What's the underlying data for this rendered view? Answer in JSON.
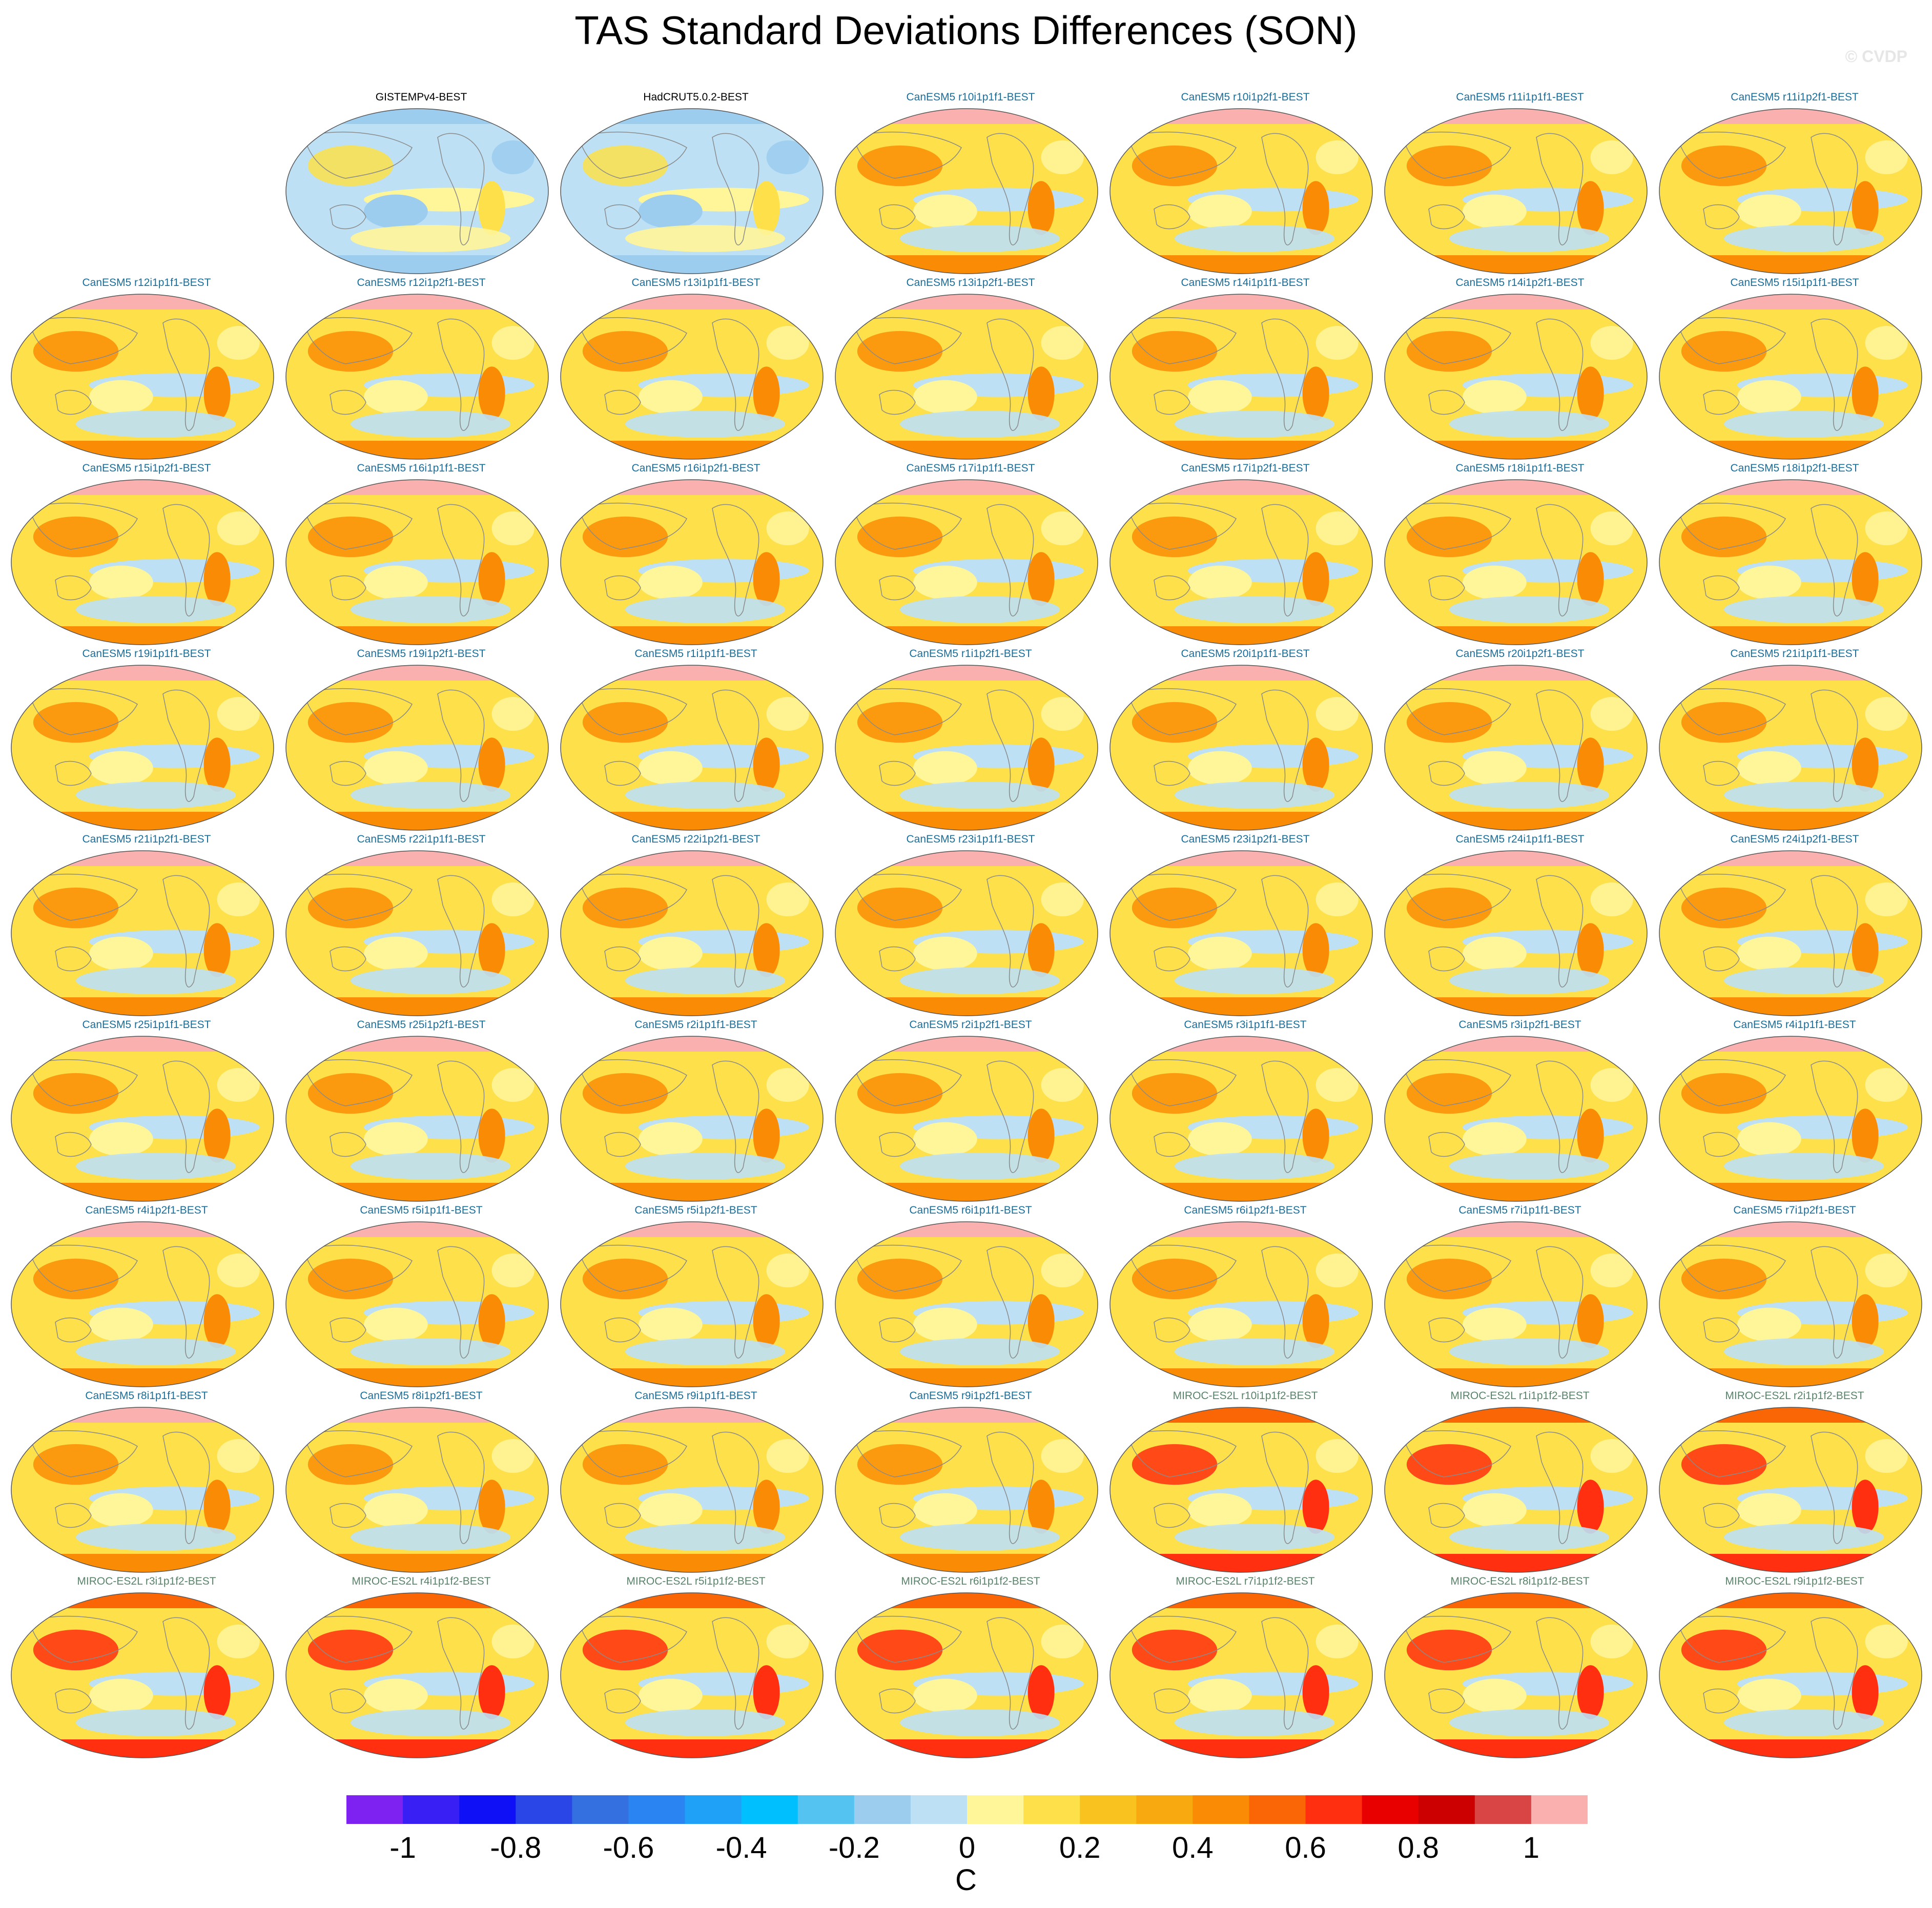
{
  "title": "TAS Standard Deviations Differences (SON)",
  "watermark": "© CVDP",
  "chart_data": {
    "type": "heatmap",
    "title": "TAS Standard Deviations Differences (SON)",
    "map_projection": "Robinson (global)",
    "grid": "9 rows × 7 columns of maps; first cell empty",
    "panels": [
      {
        "label": "GISTEMPv4-BEST",
        "group": "obs"
      },
      {
        "label": "HadCRUT5.0.2-BEST",
        "group": "obs"
      },
      {
        "label": "CanESM5 r10i1p1f1-BEST",
        "group": "CanESM5"
      },
      {
        "label": "CanESM5 r10i1p2f1-BEST",
        "group": "CanESM5"
      },
      {
        "label": "CanESM5 r11i1p1f1-BEST",
        "group": "CanESM5"
      },
      {
        "label": "CanESM5 r11i1p2f1-BEST",
        "group": "CanESM5"
      },
      {
        "label": "CanESM5 r12i1p1f1-BEST",
        "group": "CanESM5"
      },
      {
        "label": "CanESM5 r12i1p2f1-BEST",
        "group": "CanESM5"
      },
      {
        "label": "CanESM5 r13i1p1f1-BEST",
        "group": "CanESM5"
      },
      {
        "label": "CanESM5 r13i1p2f1-BEST",
        "group": "CanESM5"
      },
      {
        "label": "CanESM5 r14i1p1f1-BEST",
        "group": "CanESM5"
      },
      {
        "label": "CanESM5 r14i1p2f1-BEST",
        "group": "CanESM5"
      },
      {
        "label": "CanESM5 r15i1p1f1-BEST",
        "group": "CanESM5"
      },
      {
        "label": "CanESM5 r15i1p2f1-BEST",
        "group": "CanESM5"
      },
      {
        "label": "CanESM5 r16i1p1f1-BEST",
        "group": "CanESM5"
      },
      {
        "label": "CanESM5 r16i1p2f1-BEST",
        "group": "CanESM5"
      },
      {
        "label": "CanESM5 r17i1p1f1-BEST",
        "group": "CanESM5"
      },
      {
        "label": "CanESM5 r17i1p2f1-BEST",
        "group": "CanESM5"
      },
      {
        "label": "CanESM5 r18i1p1f1-BEST",
        "group": "CanESM5"
      },
      {
        "label": "CanESM5 r18i1p2f1-BEST",
        "group": "CanESM5"
      },
      {
        "label": "CanESM5 r19i1p1f1-BEST",
        "group": "CanESM5"
      },
      {
        "label": "CanESM5 r19i1p2f1-BEST",
        "group": "CanESM5"
      },
      {
        "label": "CanESM5 r1i1p1f1-BEST",
        "group": "CanESM5"
      },
      {
        "label": "CanESM5 r1i1p2f1-BEST",
        "group": "CanESM5"
      },
      {
        "label": "CanESM5 r20i1p1f1-BEST",
        "group": "CanESM5"
      },
      {
        "label": "CanESM5 r20i1p2f1-BEST",
        "group": "CanESM5"
      },
      {
        "label": "CanESM5 r21i1p1f1-BEST",
        "group": "CanESM5"
      },
      {
        "label": "CanESM5 r21i1p2f1-BEST",
        "group": "CanESM5"
      },
      {
        "label": "CanESM5 r22i1p1f1-BEST",
        "group": "CanESM5"
      },
      {
        "label": "CanESM5 r22i1p2f1-BEST",
        "group": "CanESM5"
      },
      {
        "label": "CanESM5 r23i1p1f1-BEST",
        "group": "CanESM5"
      },
      {
        "label": "CanESM5 r23i1p2f1-BEST",
        "group": "CanESM5"
      },
      {
        "label": "CanESM5 r24i1p1f1-BEST",
        "group": "CanESM5"
      },
      {
        "label": "CanESM5 r24i1p2f1-BEST",
        "group": "CanESM5"
      },
      {
        "label": "CanESM5 r25i1p1f1-BEST",
        "group": "CanESM5"
      },
      {
        "label": "CanESM5 r25i1p2f1-BEST",
        "group": "CanESM5"
      },
      {
        "label": "CanESM5 r2i1p1f1-BEST",
        "group": "CanESM5"
      },
      {
        "label": "CanESM5 r2i1p2f1-BEST",
        "group": "CanESM5"
      },
      {
        "label": "CanESM5 r3i1p1f1-BEST",
        "group": "CanESM5"
      },
      {
        "label": "CanESM5 r3i1p2f1-BEST",
        "group": "CanESM5"
      },
      {
        "label": "CanESM5 r4i1p1f1-BEST",
        "group": "CanESM5"
      },
      {
        "label": "CanESM5 r4i1p2f1-BEST",
        "group": "CanESM5"
      },
      {
        "label": "CanESM5 r5i1p1f1-BEST",
        "group": "CanESM5"
      },
      {
        "label": "CanESM5 r5i1p2f1-BEST",
        "group": "CanESM5"
      },
      {
        "label": "CanESM5 r6i1p1f1-BEST",
        "group": "CanESM5"
      },
      {
        "label": "CanESM5 r6i1p2f1-BEST",
        "group": "CanESM5"
      },
      {
        "label": "CanESM5 r7i1p1f1-BEST",
        "group": "CanESM5"
      },
      {
        "label": "CanESM5 r7i1p2f1-BEST",
        "group": "CanESM5"
      },
      {
        "label": "CanESM5 r8i1p1f1-BEST",
        "group": "CanESM5"
      },
      {
        "label": "CanESM5 r8i1p2f1-BEST",
        "group": "CanESM5"
      },
      {
        "label": "CanESM5 r9i1p1f1-BEST",
        "group": "CanESM5"
      },
      {
        "label": "CanESM5 r9i1p2f1-BEST",
        "group": "CanESM5"
      },
      {
        "label": "MIROC-ES2L r10i1p1f2-BEST",
        "group": "MIROC"
      },
      {
        "label": "MIROC-ES2L r1i1p1f2-BEST",
        "group": "MIROC"
      },
      {
        "label": "MIROC-ES2L r2i1p1f2-BEST",
        "group": "MIROC"
      },
      {
        "label": "MIROC-ES2L r3i1p1f2-BEST",
        "group": "MIROC"
      },
      {
        "label": "MIROC-ES2L r4i1p1f2-BEST",
        "group": "MIROC"
      },
      {
        "label": "MIROC-ES2L r5i1p1f2-BEST",
        "group": "MIROC"
      },
      {
        "label": "MIROC-ES2L r6i1p1f2-BEST",
        "group": "MIROC"
      },
      {
        "label": "MIROC-ES2L r7i1p1f2-BEST",
        "group": "MIROC"
      },
      {
        "label": "MIROC-ES2L r8i1p1f2-BEST",
        "group": "MIROC"
      },
      {
        "label": "MIROC-ES2L r9i1p1f2-BEST",
        "group": "MIROC"
      }
    ],
    "colorbar": {
      "ticks": [
        "-1",
        "-0.8",
        "-0.6",
        "-0.4",
        "-0.2",
        "0",
        "0.2",
        "0.4",
        "0.6",
        "0.8",
        "1"
      ],
      "units": "C",
      "range": [
        -1.1,
        1.1
      ],
      "levels_step": 0.1,
      "colors": [
        "#7d22f0",
        "#3a1ff5",
        "#1010f7",
        "#2a46e6",
        "#3470e0",
        "#2a85f2",
        "#1fa1f7",
        "#00bfff",
        "#55c3f2",
        "#9ccdee",
        "#bde0f5",
        "#fff599",
        "#fde04a",
        "#f9c21f",
        "#f7a90f",
        "#fa8c05",
        "#fa6605",
        "#ff2f0f",
        "#e80000",
        "#cc0000",
        "#d94545",
        "#fbb0b0"
      ]
    }
  },
  "label_colors": {
    "obs": "#000000",
    "CanESM5": "#1a6d99",
    "MIROC": "#58836a"
  },
  "map_palettes": {
    "obs": {
      "ocean": "#bde0f5",
      "blob1": "#fff599",
      "blob2": "#9ccdee",
      "blob3": "#fde04a",
      "polar": "#9ccdee"
    },
    "CanESM5": {
      "ocean": "#fde04a",
      "blob1": "#bde0f5",
      "blob2": "#fff599",
      "blob3": "#fa8c05",
      "polar": "#fbb0b0"
    },
    "MIROC": {
      "ocean": "#fde04a",
      "blob1": "#bde0f5",
      "blob2": "#fff599",
      "blob3": "#ff2f0f",
      "polar": "#fa6605"
    }
  }
}
